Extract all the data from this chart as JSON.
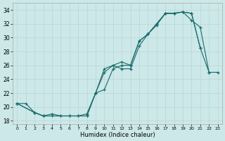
{
  "title": "",
  "xlabel": "Humidex (Indice chaleur)",
  "background_color": "#cce8e8",
  "grid_color": "#b8d4d4",
  "line_color": "#1a6b6b",
  "xlim": [
    -0.5,
    23.5
  ],
  "ylim": [
    17.5,
    35.0
  ],
  "xticks": [
    0,
    1,
    2,
    3,
    4,
    5,
    6,
    7,
    8,
    9,
    10,
    11,
    12,
    13,
    14,
    15,
    16,
    17,
    18,
    19,
    20,
    21,
    22,
    23
  ],
  "yticks": [
    18,
    20,
    22,
    24,
    26,
    28,
    30,
    32,
    34
  ],
  "line1_x": [
    0,
    1,
    2,
    3,
    4,
    5,
    6,
    7,
    8,
    9,
    10,
    11,
    12,
    13,
    14,
    15,
    16,
    17,
    18,
    19,
    20,
    21,
    22,
    23
  ],
  "line1_y": [
    20.5,
    20.5,
    19.2,
    18.7,
    18.7,
    18.7,
    18.7,
    18.7,
    18.7,
    22.0,
    25.0,
    26.0,
    25.5,
    25.5,
    28.8,
    30.5,
    31.8,
    33.5,
    33.5,
    33.7,
    32.5,
    31.5,
    25.0,
    null
  ],
  "line2_x": [
    0,
    2,
    3,
    4,
    5,
    6,
    7,
    8,
    9,
    10,
    11,
    12,
    13,
    14,
    15,
    16,
    17,
    18,
    19,
    20,
    21,
    22,
    23
  ],
  "line2_y": [
    20.5,
    19.2,
    18.7,
    19.0,
    18.7,
    18.7,
    18.7,
    19.0,
    22.0,
    25.5,
    26.0,
    26.5,
    26.0,
    29.5,
    30.5,
    32.0,
    33.5,
    33.5,
    33.7,
    33.5,
    28.5,
    null,
    null
  ],
  "line3_x": [
    0,
    2,
    3,
    8,
    9,
    10,
    11,
    12,
    13,
    14,
    15,
    16,
    17,
    18,
    19,
    20,
    21,
    22,
    23
  ],
  "line3_y": [
    20.5,
    19.2,
    18.7,
    18.7,
    22.0,
    22.5,
    25.5,
    26.0,
    26.0,
    29.5,
    30.5,
    32.0,
    33.5,
    33.5,
    33.7,
    33.5,
    28.5,
    25.0,
    25.0
  ]
}
